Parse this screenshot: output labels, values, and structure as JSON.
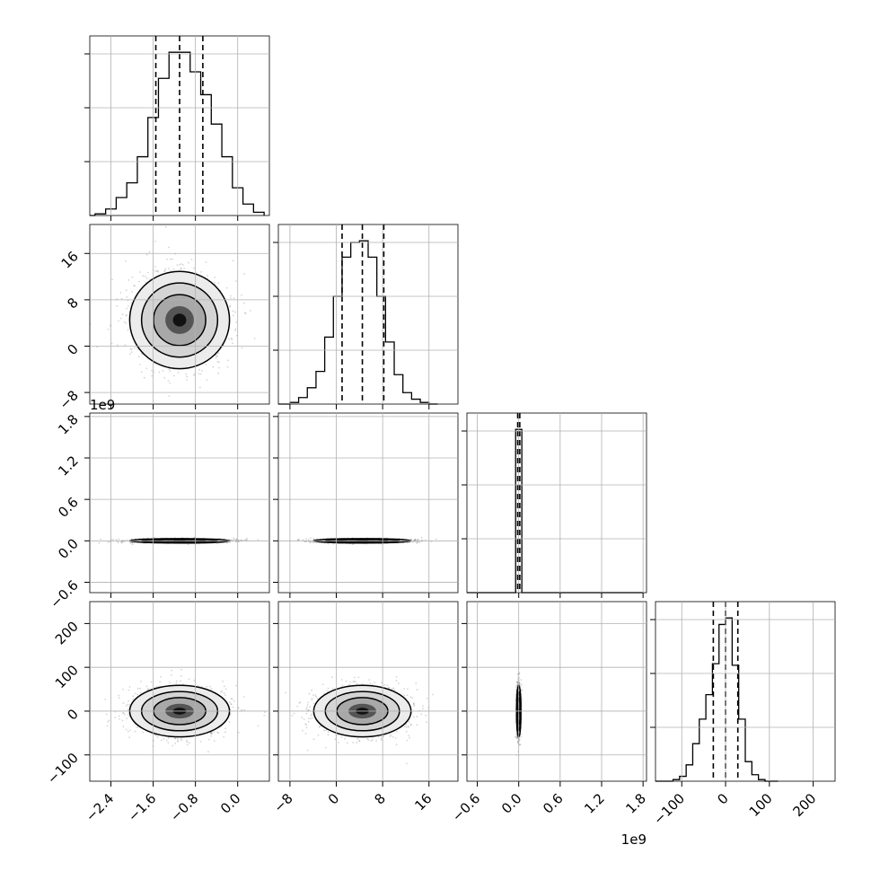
{
  "chart_data": {
    "type": "corner",
    "title": "",
    "grid": true,
    "parameters": [
      {
        "lim": [
          -2.8,
          0.6
        ],
        "ticks": [
          -2.4,
          -1.6,
          -0.8,
          0.0
        ],
        "tick_labels": [
          "−2.4",
          "−1.6",
          "−0.8",
          "0.0"
        ],
        "offset": "",
        "quantiles": [
          -1.55,
          -1.1,
          -0.66
        ]
      },
      {
        "lim": [
          -10,
          21
        ],
        "ticks": [
          -8,
          0,
          8,
          16
        ],
        "tick_labels": [
          "−8",
          "0",
          "8",
          "16"
        ],
        "offset": "",
        "quantiles": [
          1.0,
          4.5,
          8.2
        ]
      },
      {
        "lim": [
          -0.75,
          1.85
        ],
        "ticks": [
          -0.6,
          0.0,
          0.6,
          1.2,
          1.8
        ],
        "tick_labels": [
          "−0.6",
          "0.0",
          "0.6",
          "1.2",
          "1.8"
        ],
        "offset": "1e9",
        "quantiles": [
          -0.015,
          0.0,
          0.015
        ]
      },
      {
        "lim": [
          -160,
          250
        ],
        "ticks": [
          -100,
          0,
          100,
          200
        ],
        "tick_labels": [
          "−100",
          "0",
          "100",
          "200"
        ],
        "offset": "",
        "quantiles": [
          -28,
          0,
          28
        ]
      }
    ],
    "marginals": [
      {
        "param": 0,
        "bins": [
          -2.7,
          -2.5,
          -2.3,
          -2.1,
          -1.9,
          -1.7,
          -1.5,
          -1.3,
          -1.1,
          -0.9,
          -0.7,
          -0.5,
          -0.3,
          -0.1,
          0.1,
          0.3,
          0.5
        ],
        "values": [
          0.01,
          0.04,
          0.11,
          0.2,
          0.36,
          0.6,
          0.84,
          1.0,
          1.0,
          0.88,
          0.74,
          0.56,
          0.36,
          0.17,
          0.07,
          0.02
        ]
      },
      {
        "param": 1,
        "bins": [
          -8,
          -6.5,
          -5,
          -3.5,
          -2,
          -0.5,
          1,
          2.5,
          4,
          5.5,
          7,
          8.5,
          10,
          11.5,
          13,
          14.5,
          16,
          17.5
        ],
        "values": [
          0.01,
          0.04,
          0.1,
          0.2,
          0.41,
          0.66,
          0.9,
          0.99,
          1.0,
          0.9,
          0.66,
          0.38,
          0.18,
          0.07,
          0.03,
          0.01,
          0.0
        ]
      },
      {
        "param": 2,
        "bins": [
          -0.6,
          -0.045,
          0.045,
          1.8
        ],
        "values": [
          0.0,
          1.0,
          0.0
        ]
      },
      {
        "param": 3,
        "bins": [
          -120,
          -105,
          -90,
          -75,
          -60,
          -45,
          -30,
          -15,
          0,
          15,
          30,
          45,
          60,
          75,
          90,
          105,
          120
        ],
        "values": [
          0.01,
          0.03,
          0.1,
          0.23,
          0.38,
          0.53,
          0.72,
          0.96,
          1.0,
          0.71,
          0.38,
          0.12,
          0.04,
          0.01,
          0.0,
          0.0
        ]
      }
    ],
    "joints": [
      {
        "x_param": 0,
        "y_param": 1,
        "center": [
          -1.1,
          4.5
        ],
        "sigma": [
          0.45,
          4.0
        ]
      },
      {
        "x_param": 0,
        "y_param": 2,
        "center": [
          -1.1,
          0.0
        ],
        "sigma": [
          0.45,
          0.015
        ]
      },
      {
        "x_param": 1,
        "y_param": 2,
        "center": [
          4.5,
          0.0
        ],
        "sigma": [
          4.0,
          0.015
        ]
      },
      {
        "x_param": 0,
        "y_param": 3,
        "center": [
          -1.1,
          0.0
        ],
        "sigma": [
          0.45,
          28
        ]
      },
      {
        "x_param": 1,
        "y_param": 3,
        "center": [
          4.5,
          0.0
        ],
        "sigma": [
          4.0,
          28
        ]
      },
      {
        "x_param": 2,
        "y_param": 3,
        "center": [
          0.0,
          0.0
        ],
        "sigma": [
          0.015,
          28
        ]
      }
    ]
  }
}
